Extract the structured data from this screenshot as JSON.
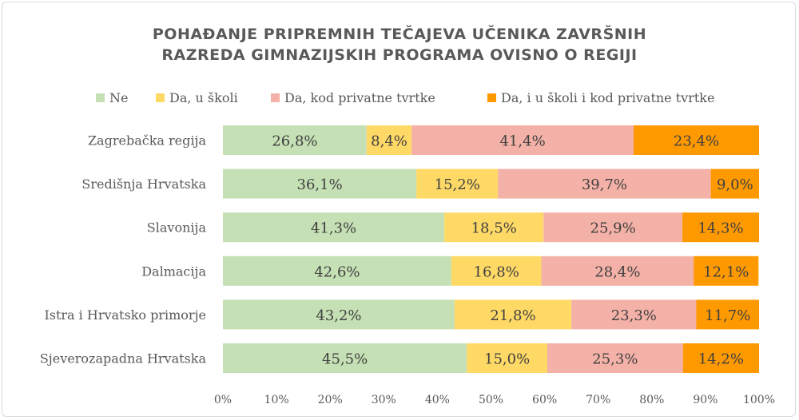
{
  "chart_data": {
    "type": "bar",
    "orientation": "horizontal",
    "stacked": "percent",
    "title_lines": [
      "POHAĐANJE PRIPREMNIH TEČAJEVA UČENIKA ZAVRŠNIH",
      "RAZREDA GIMNAZIJSKIH PROGRAMA OVISNO O REGIJI"
    ],
    "legend_position": "top",
    "xlim": [
      0,
      100
    ],
    "x_ticks": [
      "0%",
      "10%",
      "20%",
      "30%",
      "40%",
      "50%",
      "60%",
      "70%",
      "80%",
      "90%",
      "100%"
    ],
    "categories": [
      "Zagrebačka regija",
      "Središnja Hrvatska",
      "Slavonija",
      "Dalmacija",
      "Istra i Hrvatsko primorje",
      "Sjeverozapadna Hrvatska"
    ],
    "series": [
      {
        "name": "Ne",
        "color": "#c5e0b4",
        "values": [
          26.8,
          36.1,
          41.3,
          42.6,
          43.2,
          45.5
        ],
        "labels": [
          "26,8%",
          "36,1%",
          "41,3%",
          "42,6%",
          "43,2%",
          "45,5%"
        ]
      },
      {
        "name": "Da, u školi",
        "color": "#ffd966",
        "values": [
          8.4,
          15.2,
          18.5,
          16.8,
          21.8,
          15.0
        ],
        "labels": [
          "8,4%",
          "15,2%",
          "18,5%",
          "16,8%",
          "21,8%",
          "15,0%"
        ]
      },
      {
        "name": "Da, kod privatne tvrtke",
        "color": "#f4b1a7",
        "values": [
          41.4,
          39.7,
          25.9,
          28.4,
          23.3,
          25.3
        ],
        "labels": [
          "41,4%",
          "39,7%",
          "25,9%",
          "28,4%",
          "23,3%",
          "25,3%"
        ]
      },
      {
        "name": "Da, i u školi i kod privatne tvrtke",
        "color": "#ff9900",
        "values": [
          23.4,
          9.0,
          14.3,
          12.1,
          11.7,
          14.2
        ],
        "labels": [
          "23,4%",
          "9,0%",
          "14,3%",
          "12,1%",
          "11,7%",
          "14,2%"
        ]
      }
    ]
  }
}
